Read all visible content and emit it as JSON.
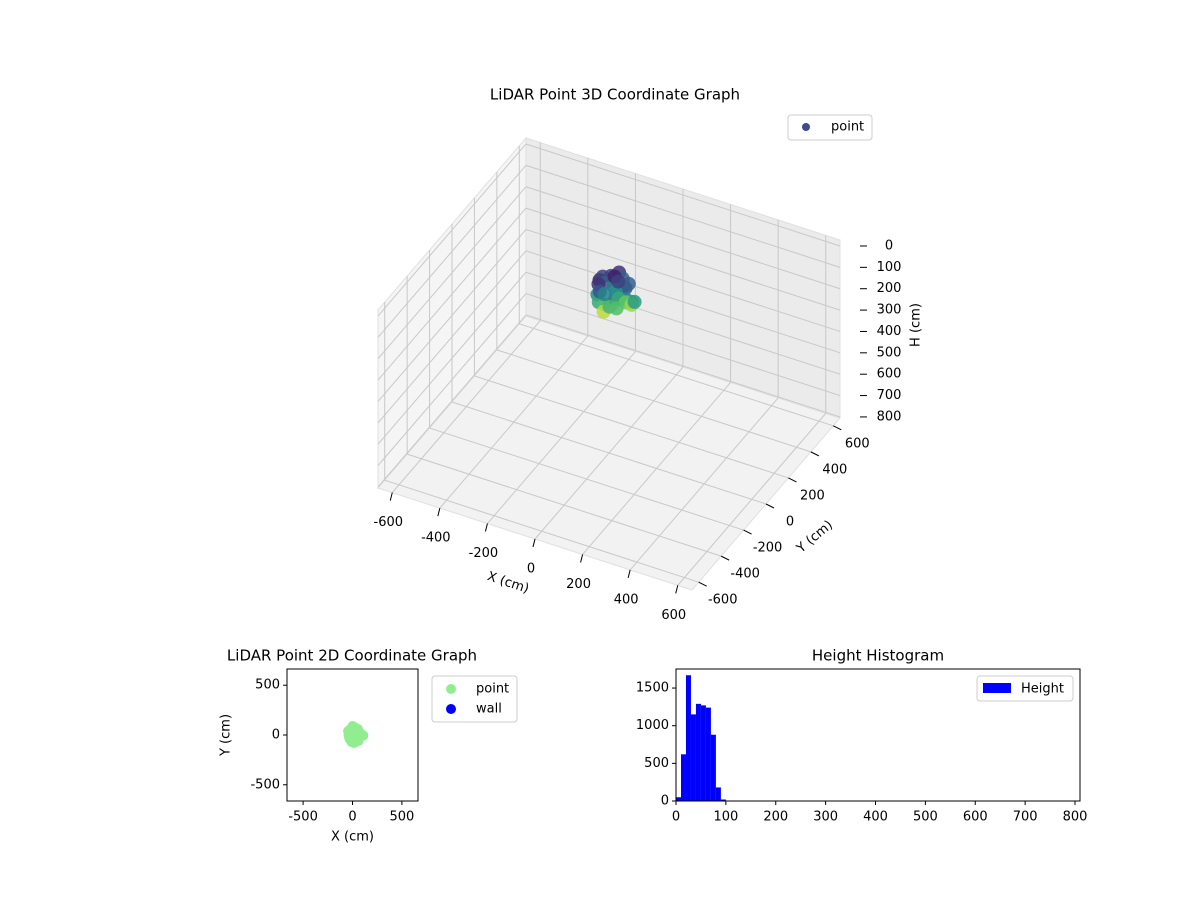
{
  "chart_data": [
    {
      "type": "scatter3d",
      "title": "LiDAR Point 3D Coordinate Graph",
      "x_label": "X (cm)",
      "y_label": "Y (cm)",
      "z_label": "H (cm)",
      "xlim": [
        -660,
        660
      ],
      "ylim": [
        -660,
        660
      ],
      "zlim": [
        -28,
        805
      ],
      "z_inverted": true,
      "xticks": [
        -600,
        -400,
        -200,
        0,
        200,
        400,
        600
      ],
      "yticks": [
        -600,
        -400,
        -200,
        0,
        200,
        400,
        600
      ],
      "zticks": [
        0,
        100,
        200,
        300,
        400,
        500,
        600,
        700,
        800
      ],
      "colormap": "viridis",
      "legend": "upper right",
      "grid": true,
      "series": [
        {
          "name": "point",
          "color": "#3e4a89",
          "x": [
            -40,
            -20,
            0,
            20,
            40,
            60,
            -30,
            -10,
            10,
            30,
            50,
            80,
            100,
            -45,
            -25,
            5,
            25,
            45,
            70,
            90,
            -35,
            -15,
            15,
            35,
            55,
            0,
            20,
            -5,
            60,
            110
          ],
          "y": [
            0,
            60,
            90,
            80,
            50,
            20,
            -40,
            -70,
            -60,
            -30,
            -50,
            -20,
            -10,
            40,
            20,
            30,
            10,
            -10,
            0,
            10,
            -20,
            -50,
            -80,
            -70,
            60,
            50,
            40,
            -30,
            -60,
            -5
          ],
          "z": [
            10,
            20,
            15,
            30,
            40,
            25,
            50,
            60,
            70,
            80,
            35,
            45,
            55,
            20,
            30,
            40,
            50,
            60,
            75,
            85,
            15,
            25,
            90,
            65,
            30,
            10,
            20,
            45,
            70,
            55
          ]
        }
      ]
    },
    {
      "type": "scatter",
      "title": "LiDAR Point 2D Coordinate Graph",
      "x_label": "X (cm)",
      "y_label": "Y (cm)",
      "xlim": [
        -663,
        663
      ],
      "ylim": [
        -663,
        663
      ],
      "xticks": [
        -500,
        0,
        500
      ],
      "yticks": [
        -500,
        0,
        500
      ],
      "legend": "outside right",
      "series": [
        {
          "name": "point",
          "color": "#90ee90",
          "x": [
            -40,
            -20,
            0,
            20,
            40,
            60,
            -30,
            -10,
            10,
            30,
            50,
            80,
            100,
            -45,
            -25,
            5,
            25,
            45,
            70,
            90,
            -35,
            -15,
            15,
            35,
            55,
            0,
            20,
            -5,
            60,
            110
          ],
          "y": [
            0,
            60,
            90,
            80,
            50,
            20,
            -40,
            -70,
            -60,
            -30,
            -50,
            -20,
            -10,
            40,
            20,
            30,
            10,
            -10,
            0,
            10,
            -20,
            -50,
            -80,
            -70,
            60,
            50,
            40,
            -30,
            -60,
            -5
          ]
        },
        {
          "name": "wall",
          "color": "#0000ff",
          "x": [],
          "y": []
        }
      ]
    },
    {
      "type": "histogram",
      "title": "Height Histogram",
      "xlim": [
        0,
        810
      ],
      "ylim": [
        0,
        1753
      ],
      "xticks": [
        0,
        100,
        200,
        300,
        400,
        500,
        600,
        700,
        800
      ],
      "yticks": [
        0,
        500,
        1000,
        1500
      ],
      "legend": "upper right",
      "series": [
        {
          "name": "Height",
          "color": "#0000ff",
          "bins": [
            0,
            10,
            20,
            30,
            40,
            50,
            60,
            70,
            80,
            90,
            100
          ],
          "values": [
            50,
            620,
            1670,
            1150,
            1290,
            1270,
            1240,
            880,
            180,
            20
          ]
        }
      ]
    }
  ]
}
